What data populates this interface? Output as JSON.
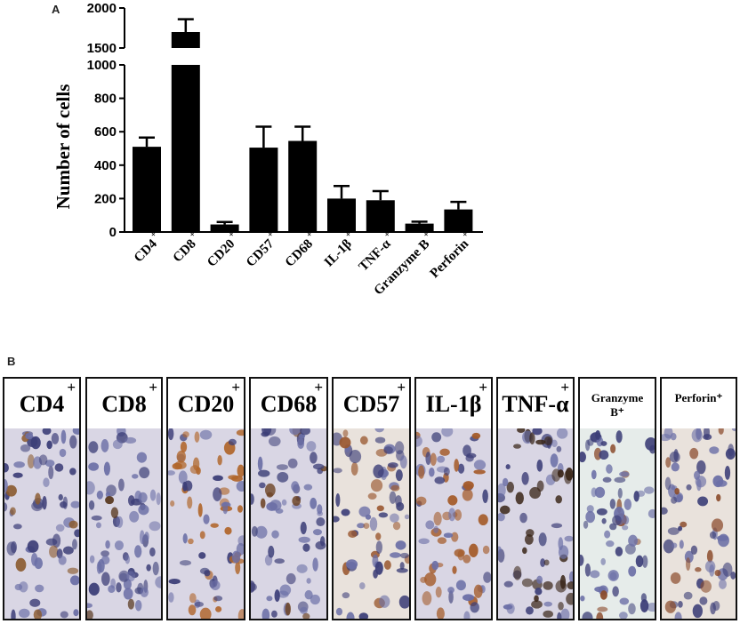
{
  "panels": {
    "a": "A",
    "b": "B"
  },
  "chart_data": {
    "type": "bar",
    "ylabel": "Number of cells",
    "xlabel": "",
    "categories": [
      "CD4",
      "CD8",
      "CD20",
      "CD57",
      "CD68",
      "IL-1β",
      "TNF-α",
      "Granzyme B",
      "Perforin"
    ],
    "superscript": "+",
    "values": [
      510,
      1700,
      45,
      505,
      545,
      200,
      190,
      50,
      135
    ],
    "errors": [
      55,
      160,
      15,
      125,
      85,
      75,
      55,
      12,
      45
    ],
    "y_axis_break": {
      "lower_range": [
        0,
        1000
      ],
      "upper_range": [
        1000,
        2000
      ],
      "hidden_between": [
        1000,
        1500
      ]
    },
    "yticks_lower": [
      0,
      200,
      400,
      600,
      800,
      1000
    ],
    "yticks_upper": [
      1500,
      2000
    ],
    "grid": false,
    "bar_color": "#000000"
  },
  "micrographs": [
    {
      "label": "CD4",
      "sup": "+",
      "size": "large",
      "stain": "#8a5a2e",
      "density": 0.12
    },
    {
      "label": "CD8",
      "sup": "+",
      "size": "large",
      "stain": "#5a3a22",
      "density": 0.1
    },
    {
      "label": "CD20",
      "sup": "+",
      "size": "large",
      "stain": "#b0652a",
      "density": 0.55
    },
    {
      "label": "CD68",
      "sup": "+",
      "size": "large",
      "stain": "#6a4020",
      "density": 0.18
    },
    {
      "label": "CD57",
      "sup": "+",
      "size": "large",
      "stain": "#9a5830",
      "density": 0.2
    },
    {
      "label": "IL-1β",
      "sup": "+",
      "size": "large",
      "stain": "#a45a28",
      "density": 0.5
    },
    {
      "label": "TNF-α",
      "sup": "+",
      "size": "large",
      "stain": "#3a2618",
      "density": 0.45
    },
    {
      "label": "Granzyme\nB⁺",
      "sup": "",
      "size": "small",
      "stain": "#8a4a2a",
      "density": 0.15
    },
    {
      "label": "Perforin⁺",
      "sup": "",
      "size": "small",
      "stain": "#8a4a2a",
      "density": 0.25
    }
  ]
}
